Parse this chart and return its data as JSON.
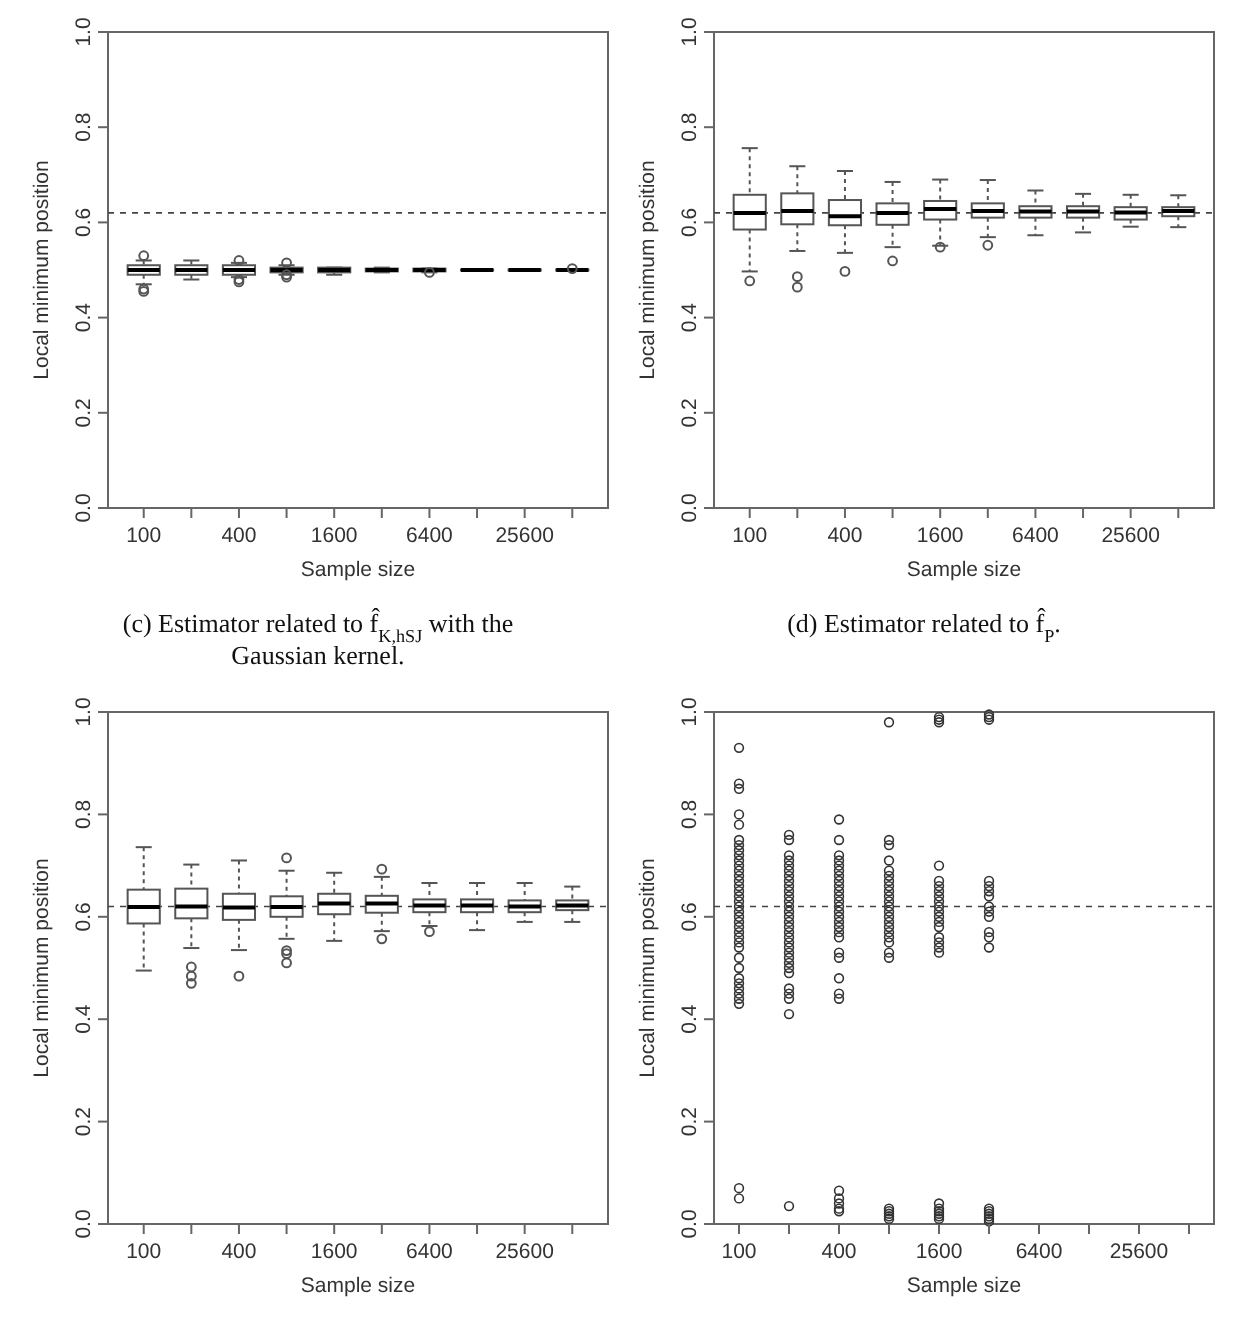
{
  "chart_data": [
    {
      "type": "box",
      "categories": [
        "100",
        null,
        "400",
        null,
        "1600",
        null,
        "6400",
        null,
        "25600",
        null
      ],
      "xlabel": "Sample size",
      "ylabel": "Local minimum position",
      "ylim": [
        0,
        1
      ],
      "yticks": [
        {
          "value": 0,
          "label": "0.0"
        },
        {
          "value": 0.2,
          "label": "0.2"
        },
        {
          "value": 0.4,
          "label": "0.4"
        },
        {
          "value": 0.6,
          "label": "0.6"
        },
        {
          "value": 0.8,
          "label": "0.8"
        },
        {
          "value": 1,
          "label": "1.0"
        }
      ],
      "ref_lines": [
        {
          "axis": "y",
          "value": 0.62,
          "line_style": "dashed"
        }
      ],
      "annotations": [
        "(c) Estimator related to f̂$_{K,hSJ}$ with the Gaussian kernel."
      ],
      "boxes": [
        {
          "low": 0.47,
          "q1": 0.49,
          "median": 0.5,
          "q3": 0.51,
          "high": 0.52,
          "outliers": [
            0.53,
            0.46,
            0.455
          ]
        },
        {
          "low": 0.48,
          "q1": 0.49,
          "median": 0.5,
          "q3": 0.51,
          "high": 0.52
        },
        {
          "low": 0.485,
          "q1": 0.49,
          "median": 0.5,
          "q3": 0.51,
          "high": 0.515,
          "outliers": [
            0.52,
            0.48,
            0.475
          ]
        },
        {
          "low": 0.49,
          "q1": 0.495,
          "median": 0.5,
          "q3": 0.505,
          "high": 0.51,
          "outliers": [
            0.515,
            0.49,
            0.485
          ]
        },
        {
          "low": 0.49,
          "q1": 0.495,
          "median": 0.5,
          "q3": 0.505,
          "high": 0.505
        },
        {
          "low": 0.495,
          "q1": 0.497,
          "median": 0.5,
          "q3": 0.503,
          "high": 0.505
        },
        {
          "low": 0.495,
          "q1": 0.497,
          "median": 0.5,
          "q3": 0.503,
          "high": 0.503,
          "outliers": [
            0.495
          ]
        },
        {
          "low": 0.498,
          "q1": 0.499,
          "median": 0.5,
          "q3": 0.501,
          "high": 0.502
        },
        {
          "low": 0.498,
          "q1": 0.499,
          "median": 0.5,
          "q3": 0.501,
          "high": 0.502
        },
        {
          "low": 0.498,
          "q1": 0.499,
          "median": 0.5,
          "q3": 0.501,
          "high": 0.502,
          "outliers": [
            0.503
          ]
        }
      ]
    },
    {
      "type": "box",
      "categories": [
        "100",
        null,
        "400",
        null,
        "1600",
        null,
        "6400",
        null,
        "25600",
        null
      ],
      "xlabel": "Sample size",
      "ylabel": "Local minimum position",
      "ylim": [
        0,
        1
      ],
      "yticks": [
        {
          "value": 0,
          "label": "0.0"
        },
        {
          "value": 0.2,
          "label": "0.2"
        },
        {
          "value": 0.4,
          "label": "0.4"
        },
        {
          "value": 0.6,
          "label": "0.6"
        },
        {
          "value": 0.8,
          "label": "0.8"
        },
        {
          "value": 1,
          "label": "1.0"
        }
      ],
      "ref_lines": [
        {
          "axis": "y",
          "value": 0.62,
          "line_style": "dashed"
        }
      ],
      "annotations": [
        "(d) Estimator related to f̂$_{P}$."
      ],
      "boxes": [
        {
          "low": 0.497,
          "q1": 0.585,
          "median": 0.62,
          "q3": 0.658,
          "high": 0.756,
          "outliers": [
            0.477
          ]
        },
        {
          "low": 0.54,
          "q1": 0.596,
          "median": 0.624,
          "q3": 0.661,
          "high": 0.718,
          "outliers": [
            0.486,
            0.464
          ]
        },
        {
          "low": 0.536,
          "q1": 0.594,
          "median": 0.613,
          "q3": 0.647,
          "high": 0.708,
          "outliers": [
            0.497
          ]
        },
        {
          "low": 0.548,
          "q1": 0.595,
          "median": 0.62,
          "q3": 0.64,
          "high": 0.685,
          "outliers": [
            0.519
          ]
        },
        {
          "low": 0.551,
          "q1": 0.606,
          "median": 0.628,
          "q3": 0.645,
          "high": 0.69,
          "outliers": [
            0.548
          ]
        },
        {
          "low": 0.569,
          "q1": 0.61,
          "median": 0.624,
          "q3": 0.64,
          "high": 0.689,
          "outliers": [
            0.552
          ]
        },
        {
          "low": 0.573,
          "q1": 0.61,
          "median": 0.623,
          "q3": 0.634,
          "high": 0.667
        },
        {
          "low": 0.579,
          "q1": 0.61,
          "median": 0.623,
          "q3": 0.634,
          "high": 0.66
        },
        {
          "low": 0.591,
          "q1": 0.606,
          "median": 0.621,
          "q3": 0.632,
          "high": 0.658
        },
        {
          "low": 0.59,
          "q1": 0.613,
          "median": 0.624,
          "q3": 0.632,
          "high": 0.657
        }
      ]
    },
    {
      "type": "box",
      "categories": [
        "100",
        null,
        "400",
        null,
        "1600",
        null,
        "6400",
        null,
        "25600",
        null
      ],
      "xlabel": "Sample size",
      "ylabel": "Local minimum position",
      "ylim": [
        0,
        1
      ],
      "yticks": [
        {
          "value": 0,
          "label": "0.0"
        },
        {
          "value": 0.2,
          "label": "0.2"
        },
        {
          "value": 0.4,
          "label": "0.4"
        },
        {
          "value": 0.6,
          "label": "0.6"
        },
        {
          "value": 0.8,
          "label": "0.8"
        },
        {
          "value": 1,
          "label": "1.0"
        }
      ],
      "ref_lines": [
        {
          "axis": "y",
          "value": 0.62,
          "line_style": "dashed"
        }
      ],
      "boxes": [
        {
          "low": 0.495,
          "q1": 0.587,
          "median": 0.619,
          "q3": 0.653,
          "high": 0.736
        },
        {
          "low": 0.539,
          "q1": 0.597,
          "median": 0.62,
          "q3": 0.655,
          "high": 0.702,
          "outliers": [
            0.502,
            0.484,
            0.47
          ]
        },
        {
          "low": 0.535,
          "q1": 0.594,
          "median": 0.618,
          "q3": 0.645,
          "high": 0.71,
          "outliers": [
            0.484
          ]
        },
        {
          "low": 0.557,
          "q1": 0.6,
          "median": 0.619,
          "q3": 0.64,
          "high": 0.69,
          "outliers": [
            0.715,
            0.534,
            0.528,
            0.51
          ]
        },
        {
          "low": 0.553,
          "q1": 0.605,
          "median": 0.626,
          "q3": 0.645,
          "high": 0.686
        },
        {
          "low": 0.572,
          "q1": 0.608,
          "median": 0.626,
          "q3": 0.641,
          "high": 0.678,
          "outliers": [
            0.693,
            0.557
          ]
        },
        {
          "low": 0.582,
          "q1": 0.609,
          "median": 0.622,
          "q3": 0.634,
          "high": 0.666,
          "outliers": [
            0.571
          ]
        },
        {
          "low": 0.574,
          "q1": 0.609,
          "median": 0.622,
          "q3": 0.634,
          "high": 0.666
        },
        {
          "low": 0.59,
          "q1": 0.609,
          "median": 0.62,
          "q3": 0.632,
          "high": 0.666
        },
        {
          "low": 0.59,
          "q1": 0.613,
          "median": 0.622,
          "q3": 0.632,
          "high": 0.659
        }
      ]
    },
    {
      "type": "scatter",
      "marker": "circle",
      "log": "x",
      "xlim": [
        70.7,
        72408
      ],
      "xticks": [
        100,
        {
          "value": 200,
          "label": null
        },
        400,
        {
          "value": 800,
          "label": null
        },
        1600,
        {
          "value": 3200,
          "label": null
        },
        6400,
        {
          "value": 12800,
          "label": null
        },
        25600,
        {
          "value": 51200,
          "label": null
        }
      ],
      "xlabel": "Sample size",
      "ylabel": "Local minimum position",
      "ylim": [
        0,
        1
      ],
      "yticks": [
        {
          "value": 0,
          "label": "0.0"
        },
        {
          "value": 0.2,
          "label": "0.2"
        },
        {
          "value": 0.4,
          "label": "0.4"
        },
        {
          "value": 0.6,
          "label": "0.6"
        },
        {
          "value": 0.8,
          "label": "0.8"
        },
        {
          "value": 1,
          "label": "1.0"
        }
      ],
      "ref_lines": [
        {
          "axis": "y",
          "value": 0.62,
          "line_style": "dashed"
        }
      ],
      "x": [
        100,
        100,
        100,
        100,
        100,
        100,
        100,
        100,
        100,
        100,
        100,
        100,
        100,
        100,
        100,
        100,
        100,
        100,
        100,
        100,
        100,
        100,
        100,
        100,
        100,
        100,
        100,
        100,
        100,
        100,
        100,
        100,
        100,
        100,
        100,
        100,
        100,
        200,
        200,
        200,
        200,
        200,
        200,
        200,
        200,
        200,
        200,
        200,
        200,
        200,
        200,
        200,
        200,
        200,
        200,
        200,
        200,
        200,
        200,
        200,
        200,
        200,
        200,
        200,
        200,
        200,
        200,
        200,
        400,
        400,
        400,
        400,
        400,
        400,
        400,
        400,
        400,
        400,
        400,
        400,
        400,
        400,
        400,
        400,
        400,
        400,
        400,
        400,
        400,
        400,
        400,
        400,
        400,
        400,
        400,
        400,
        400,
        800,
        800,
        800,
        800,
        800,
        800,
        800,
        800,
        800,
        800,
        800,
        800,
        800,
        800,
        800,
        800,
        800,
        800,
        800,
        800,
        800,
        800,
        800,
        800,
        800,
        800,
        1600,
        1600,
        1600,
        1600,
        1600,
        1600,
        1600,
        1600,
        1600,
        1600,
        1600,
        1600,
        1600,
        1600,
        1600,
        1600,
        1600,
        1600,
        1600,
        1600,
        1600,
        1600,
        1600,
        1600,
        3200,
        3200,
        3200,
        3200,
        3200,
        3200,
        3200,
        3200,
        3200,
        3200,
        3200,
        3200,
        3200,
        3200,
        3200,
        3200,
        3200,
        3200,
        3200
      ],
      "values": [
        0.93,
        0.86,
        0.85,
        0.8,
        0.78,
        0.75,
        0.74,
        0.73,
        0.72,
        0.71,
        0.7,
        0.69,
        0.68,
        0.67,
        0.66,
        0.65,
        0.64,
        0.63,
        0.62,
        0.61,
        0.6,
        0.59,
        0.58,
        0.57,
        0.56,
        0.55,
        0.54,
        0.52,
        0.5,
        0.48,
        0.47,
        0.46,
        0.45,
        0.44,
        0.43,
        0.07,
        0.05,
        0.76,
        0.75,
        0.72,
        0.71,
        0.7,
        0.69,
        0.68,
        0.67,
        0.66,
        0.65,
        0.64,
        0.63,
        0.62,
        0.61,
        0.6,
        0.59,
        0.58,
        0.57,
        0.56,
        0.55,
        0.54,
        0.53,
        0.52,
        0.51,
        0.5,
        0.49,
        0.46,
        0.45,
        0.44,
        0.41,
        0.035,
        0.79,
        0.75,
        0.72,
        0.71,
        0.7,
        0.69,
        0.68,
        0.67,
        0.66,
        0.65,
        0.64,
        0.63,
        0.62,
        0.61,
        0.6,
        0.59,
        0.58,
        0.57,
        0.56,
        0.53,
        0.52,
        0.48,
        0.45,
        0.44,
        0.065,
        0.05,
        0.04,
        0.03,
        0.025,
        0.98,
        0.75,
        0.74,
        0.71,
        0.69,
        0.68,
        0.67,
        0.66,
        0.65,
        0.64,
        0.63,
        0.62,
        0.61,
        0.6,
        0.59,
        0.58,
        0.57,
        0.56,
        0.55,
        0.53,
        0.52,
        0.03,
        0.025,
        0.02,
        0.015,
        0.01,
        0.99,
        0.985,
        0.98,
        0.7,
        0.67,
        0.66,
        0.65,
        0.64,
        0.63,
        0.62,
        0.61,
        0.6,
        0.59,
        0.58,
        0.56,
        0.55,
        0.54,
        0.53,
        0.04,
        0.03,
        0.025,
        0.02,
        0.015,
        0.01,
        0.995,
        0.99,
        0.985,
        0.67,
        0.66,
        0.65,
        0.64,
        0.62,
        0.61,
        0.6,
        0.57,
        0.56,
        0.54,
        0.03,
        0.025,
        0.02,
        0.015,
        0.01,
        0.005
      ]
    }
  ]
}
